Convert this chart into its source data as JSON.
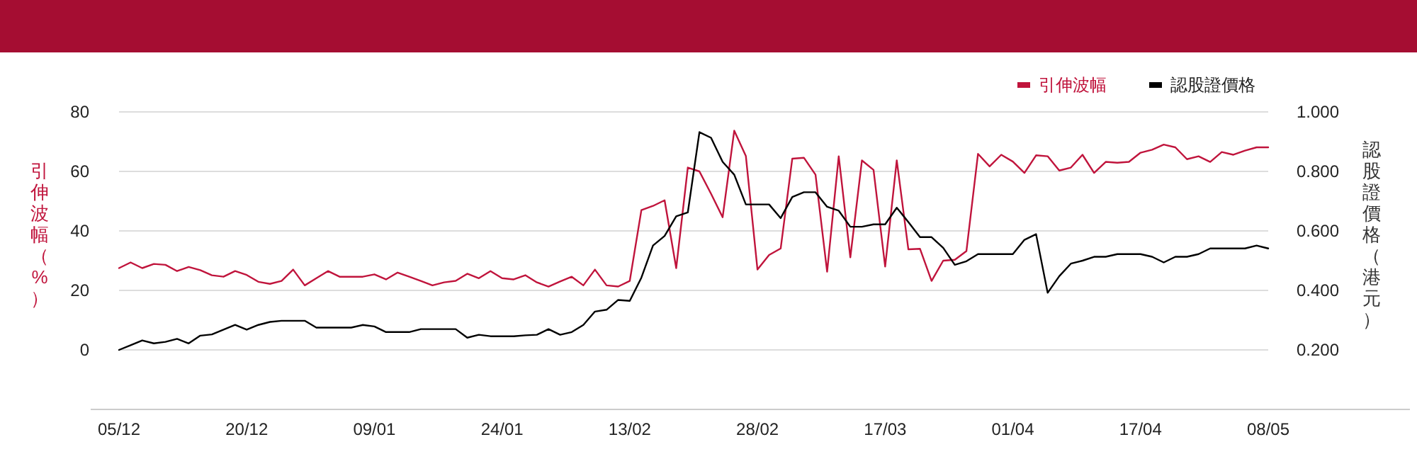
{
  "chart_data": {
    "type": "line",
    "categories": [
      "05/12",
      null,
      null,
      null,
      null,
      null,
      null,
      null,
      null,
      null,
      null,
      "20/12",
      null,
      null,
      null,
      null,
      null,
      null,
      null,
      null,
      null,
      null,
      "09/01",
      null,
      null,
      null,
      null,
      null,
      null,
      null,
      null,
      null,
      null,
      "24/01",
      null,
      null,
      null,
      null,
      null,
      null,
      null,
      null,
      null,
      null,
      "13/02",
      null,
      null,
      null,
      null,
      null,
      null,
      null,
      null,
      null,
      null,
      "28/02",
      null,
      null,
      null,
      null,
      null,
      null,
      null,
      null,
      null,
      null,
      "17/03",
      null,
      null,
      null,
      null,
      null,
      null,
      null,
      null,
      null,
      null,
      "01/04",
      null,
      null,
      null,
      null,
      null,
      null,
      null,
      null,
      null,
      null,
      "17/04",
      null,
      null,
      null,
      null,
      null,
      null,
      null,
      null,
      null,
      null,
      "08/05"
    ],
    "series": [
      {
        "name": "引伸波幅",
        "color": "#c0143c",
        "axis": "y",
        "values": [
          27.5,
          29.4,
          27.5,
          28.9,
          28.6,
          26.5,
          27.9,
          26.8,
          25.1,
          24.6,
          26.5,
          25.2,
          22.9,
          22.2,
          23.2,
          27.0,
          21.7,
          24.1,
          26.5,
          24.6,
          24.6,
          24.6,
          25.4,
          23.7,
          26.0,
          24.6,
          23.2,
          21.7,
          22.7,
          23.2,
          25.6,
          24.1,
          26.5,
          24.1,
          23.7,
          25.1,
          22.7,
          21.3,
          23.0,
          24.6,
          21.7,
          27.0,
          21.7,
          21.3,
          23.2,
          47.0,
          48.4,
          50.3,
          27.5,
          61.3,
          60.0,
          52.5,
          44.6,
          73.7,
          65.2,
          27.0,
          31.9,
          34.1,
          64.3,
          64.6,
          58.9,
          26.3,
          65.1,
          31.1,
          63.7,
          60.5,
          28.0,
          63.7,
          33.8,
          34.0,
          23.2,
          30.0,
          30.3,
          33.2,
          65.9,
          61.7,
          65.6,
          63.3,
          59.5,
          65.4,
          65.1,
          60.3,
          61.3,
          65.6,
          59.5,
          63.2,
          62.9,
          63.2,
          66.3,
          67.3,
          69.0,
          68.1,
          64.1,
          65.1,
          63.2,
          66.5,
          65.6,
          67.0,
          68.1,
          68.1
        ]
      },
      {
        "name": "認股證價格",
        "color": "#000000",
        "axis": "y2",
        "values": [
          0.2,
          0.216,
          0.232,
          0.222,
          0.227,
          0.237,
          0.222,
          0.248,
          0.252,
          0.268,
          0.284,
          0.268,
          0.284,
          0.294,
          0.298,
          0.298,
          0.298,
          0.275,
          0.275,
          0.275,
          0.275,
          0.284,
          0.279,
          0.26,
          0.26,
          0.26,
          0.27,
          0.27,
          0.27,
          0.27,
          0.241,
          0.251,
          0.246,
          0.246,
          0.246,
          0.249,
          0.251,
          0.27,
          0.251,
          0.26,
          0.284,
          0.329,
          0.335,
          0.368,
          0.365,
          0.443,
          0.551,
          0.583,
          0.649,
          0.662,
          0.932,
          0.913,
          0.832,
          0.789,
          0.689,
          0.689,
          0.689,
          0.643,
          0.714,
          0.73,
          0.73,
          0.681,
          0.668,
          0.614,
          0.614,
          0.622,
          0.622,
          0.678,
          0.63,
          0.579,
          0.579,
          0.543,
          0.486,
          0.498,
          0.522,
          0.522,
          0.522,
          0.522,
          0.57,
          0.589,
          0.392,
          0.448,
          0.49,
          0.5,
          0.513,
          0.513,
          0.522,
          0.522,
          0.522,
          0.513,
          0.494,
          0.513,
          0.513,
          0.522,
          0.541,
          0.541,
          0.541,
          0.541,
          0.551,
          0.541
        ]
      }
    ],
    "ylim": [
      -20,
      80
    ],
    "yticks": [
      0,
      20,
      40,
      60,
      80
    ],
    "y2lim": [
      0,
      1
    ],
    "y2ticks": [
      {
        "value": 0.2,
        "label": "0.200"
      },
      {
        "value": 0.4,
        "label": "0.400"
      },
      {
        "value": 0.6,
        "label": "0.600"
      },
      {
        "value": 0.8,
        "label": "0.800"
      },
      {
        "value": 1,
        "label": "1.000"
      }
    ],
    "ylabel": "引伸波幅（%）",
    "y2label": "認股證價格（港元）",
    "grid": "y",
    "legend": "top right"
  }
}
